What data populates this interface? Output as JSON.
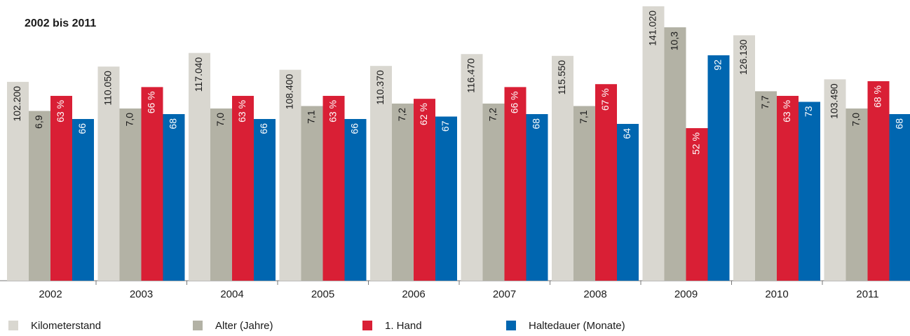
{
  "chart_data": {
    "type": "bar",
    "title": "2002 bis 2011",
    "categories": [
      "2002",
      "2003",
      "2004",
      "2005",
      "2006",
      "2007",
      "2008",
      "2009",
      "2010",
      "2011"
    ],
    "series": [
      {
        "name": "Kilometerstand",
        "color": "#d9d7d0",
        "values": [
          102200,
          110050,
          117040,
          108400,
          110370,
          116470,
          115550,
          141020,
          126130,
          103490
        ],
        "value_labels": [
          "102.200",
          "110.050",
          "117.040",
          "108.400",
          "110.370",
          "116.470",
          "115.550",
          "141.020",
          "126.130",
          "103.490"
        ]
      },
      {
        "name": "Alter (Jahre)",
        "color": "#b3b2a5",
        "values": [
          6.9,
          7.0,
          7.0,
          7.1,
          7.2,
          7.2,
          7.1,
          10.3,
          7.7,
          7.0
        ],
        "value_labels": [
          "6,9",
          "7,0",
          "7,0",
          "7,1",
          "7,2",
          "7,2",
          "7,1",
          "10,3",
          "7,7",
          "7,0"
        ]
      },
      {
        "name": "1. Hand",
        "color": "#d91f35",
        "values": [
          63,
          66,
          63,
          63,
          62,
          66,
          67,
          52,
          63,
          68
        ],
        "value_labels": [
          "63 %",
          "66 %",
          "63 %",
          "63 %",
          "62 %",
          "66 %",
          "67 %",
          "52 %",
          "63 %",
          "68 %"
        ]
      },
      {
        "name": "Haltedauer (Monate)",
        "color": "#0066b0",
        "values": [
          66,
          68,
          66,
          66,
          67,
          68,
          64,
          92,
          73,
          68
        ]
      }
    ]
  }
}
